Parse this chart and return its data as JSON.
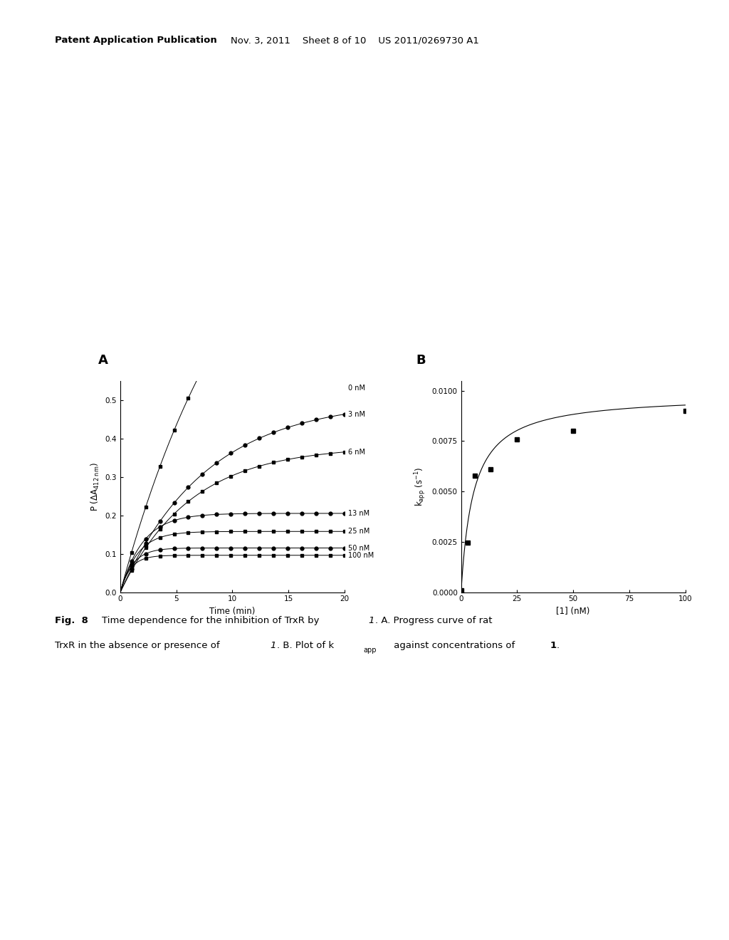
{
  "panel_A_label": "A",
  "panel_B_label": "B",
  "panel_A": {
    "xlabel": "Time (min)",
    "ylabel": "P (ΔA₄₁₂ nm)",
    "xlim": [
      0,
      20
    ],
    "ylim": [
      0.0,
      0.55
    ],
    "yticks": [
      0.0,
      0.1,
      0.2,
      0.3,
      0.4,
      0.5
    ],
    "xticks": [
      0,
      5,
      10,
      15,
      20
    ],
    "curves": [
      {
        "label": "0 nM",
        "Pmax": 1.2,
        "k": 0.09
      },
      {
        "label": "3 nM",
        "Pmax": 0.5,
        "k": 0.13
      },
      {
        "label": "6 nM",
        "Pmax": 0.38,
        "k": 0.16
      },
      {
        "label": "13 nM",
        "Pmax": 0.205,
        "k": 0.5
      },
      {
        "label": "25 nM",
        "Pmax": 0.158,
        "k": 0.65
      },
      {
        "label": "50 nM",
        "Pmax": 0.115,
        "k": 0.9
      },
      {
        "label": "100 nM",
        "Pmax": 0.096,
        "k": 1.1
      }
    ]
  },
  "panel_B": {
    "xlabel": "[1] (nM)",
    "xlim": [
      0,
      100
    ],
    "ylim": [
      0.0,
      0.0105
    ],
    "yticks": [
      0.0,
      0.0025,
      0.005,
      0.0075,
      0.01
    ],
    "xticks": [
      0,
      25,
      50,
      75,
      100
    ],
    "data_x": [
      0,
      3,
      6,
      13,
      25,
      50,
      100
    ],
    "data_y": [
      0.0001,
      0.00245,
      0.0058,
      0.0061,
      0.0076,
      0.008,
      0.009
    ],
    "kmax": 0.0098,
    "KI": 5.5
  },
  "header_bold": "Patent Application Publication",
  "header_normal": "    Nov. 3, 2011    Sheet 8 of 10    US 2011/0269730 A1",
  "background_color": "#ffffff"
}
